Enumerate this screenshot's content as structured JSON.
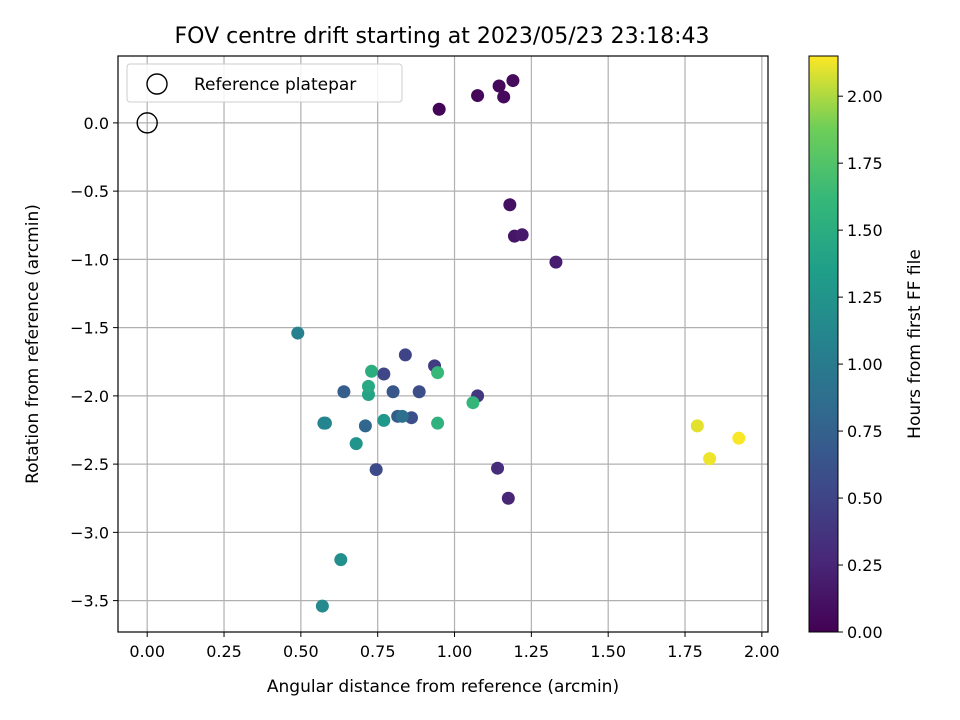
{
  "chart_data": {
    "type": "scatter",
    "title": "FOV centre drift starting at 2023/05/23 23:18:43",
    "xlabel": "Angular distance from reference (arcmin)",
    "ylabel": "Rotation from reference (arcmin)",
    "xlim": [
      -0.095,
      2.02
    ],
    "ylim": [
      -3.73,
      0.49
    ],
    "xticks": [
      0.0,
      0.25,
      0.5,
      0.75,
      1.0,
      1.25,
      1.5,
      1.75,
      2.0
    ],
    "xtick_labels": [
      "0.00",
      "0.25",
      "0.50",
      "0.75",
      "1.00",
      "1.25",
      "1.50",
      "1.75",
      "2.00"
    ],
    "yticks": [
      0.0,
      -0.5,
      -1.0,
      -1.5,
      -2.0,
      -2.5,
      -3.0,
      -3.5
    ],
    "ytick_labels": [
      "0.0",
      "−0.5",
      "−1.0",
      "−1.5",
      "−2.0",
      "−2.5",
      "−3.0",
      "−3.5"
    ],
    "grid": true,
    "colormap": "viridis",
    "colorbar": {
      "label": "Hours from first FF file",
      "range": [
        0.0,
        2.15
      ],
      "ticks": [
        0.0,
        0.25,
        0.5,
        0.75,
        1.0,
        1.25,
        1.5,
        1.75,
        2.0
      ],
      "tick_labels": [
        "0.00",
        "0.25",
        "0.50",
        "0.75",
        "1.00",
        "1.25",
        "1.50",
        "1.75",
        "2.00"
      ]
    },
    "legend": {
      "placement": "upper-left",
      "entries": [
        {
          "label": "Reference platepar",
          "marker": "open-circle"
        }
      ]
    },
    "reference_point": {
      "x": 0.0,
      "y": 0.0
    },
    "points": [
      {
        "x": 0.95,
        "y": 0.1,
        "hours": 0.02
      },
      {
        "x": 1.075,
        "y": 0.2,
        "hours": 0.04
      },
      {
        "x": 1.145,
        "y": 0.27,
        "hours": 0.05
      },
      {
        "x": 1.16,
        "y": 0.19,
        "hours": 0.06
      },
      {
        "x": 1.19,
        "y": 0.31,
        "hours": 0.07
      },
      {
        "x": 1.18,
        "y": -0.6,
        "hours": 0.1
      },
      {
        "x": 1.195,
        "y": -0.83,
        "hours": 0.14
      },
      {
        "x": 1.22,
        "y": -0.82,
        "hours": 0.17
      },
      {
        "x": 1.33,
        "y": -1.02,
        "hours": 0.2
      },
      {
        "x": 1.175,
        "y": -2.75,
        "hours": 0.25
      },
      {
        "x": 1.14,
        "y": -2.53,
        "hours": 0.32
      },
      {
        "x": 1.075,
        "y": -2.0,
        "hours": 0.38
      },
      {
        "x": 0.935,
        "y": -1.78,
        "hours": 0.43
      },
      {
        "x": 0.84,
        "y": -1.7,
        "hours": 0.5
      },
      {
        "x": 0.77,
        "y": -1.84,
        "hours": 0.52
      },
      {
        "x": 0.745,
        "y": -2.54,
        "hours": 0.55
      },
      {
        "x": 0.885,
        "y": -1.97,
        "hours": 0.58
      },
      {
        "x": 0.86,
        "y": -2.16,
        "hours": 0.6
      },
      {
        "x": 0.8,
        "y": -1.97,
        "hours": 0.65
      },
      {
        "x": 0.815,
        "y": -2.15,
        "hours": 0.7
      },
      {
        "x": 0.64,
        "y": -1.97,
        "hours": 0.72
      },
      {
        "x": 0.71,
        "y": -2.22,
        "hours": 0.8
      },
      {
        "x": 0.83,
        "y": -2.15,
        "hours": 0.9
      },
      {
        "x": 0.49,
        "y": -1.54,
        "hours": 1.05
      },
      {
        "x": 0.575,
        "y": -2.2,
        "hours": 1.08
      },
      {
        "x": 0.58,
        "y": -2.2,
        "hours": 1.1
      },
      {
        "x": 0.57,
        "y": -3.54,
        "hours": 1.15
      },
      {
        "x": 0.63,
        "y": -3.2,
        "hours": 1.2
      },
      {
        "x": 0.68,
        "y": -2.35,
        "hours": 1.25
      },
      {
        "x": 0.77,
        "y": -2.18,
        "hours": 1.3
      },
      {
        "x": 0.72,
        "y": -1.99,
        "hours": 1.4
      },
      {
        "x": 0.72,
        "y": -1.93,
        "hours": 1.45
      },
      {
        "x": 0.73,
        "y": -1.82,
        "hours": 1.5
      },
      {
        "x": 0.945,
        "y": -2.2,
        "hours": 1.55
      },
      {
        "x": 1.06,
        "y": -2.05,
        "hours": 1.6
      },
      {
        "x": 0.945,
        "y": -1.83,
        "hours": 1.62
      },
      {
        "x": 1.79,
        "y": -2.22,
        "hours": 2.1
      },
      {
        "x": 1.83,
        "y": -2.46,
        "hours": 2.12
      },
      {
        "x": 1.925,
        "y": -2.31,
        "hours": 2.14
      }
    ]
  }
}
